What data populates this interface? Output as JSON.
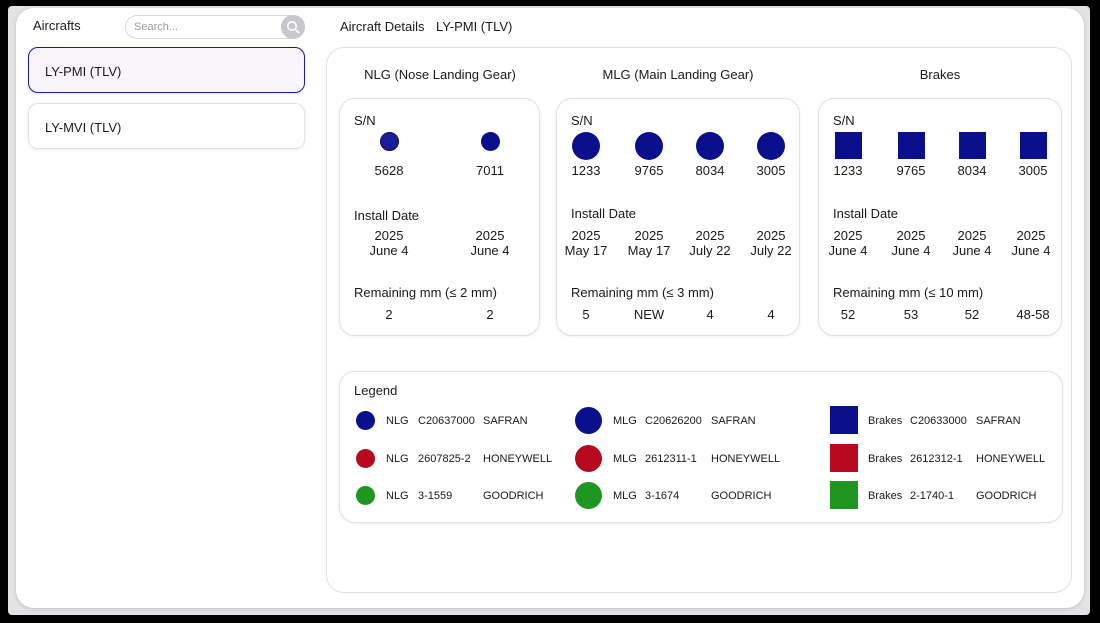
{
  "sidebar": {
    "title": "Aircrafts",
    "search_placeholder": "Search...",
    "items": [
      {
        "label": "LY-PMI (TLV)",
        "selected": true
      },
      {
        "label": "LY-MVI (TLV)",
        "selected": false
      }
    ]
  },
  "details": {
    "label": "Aircraft Details",
    "value": "LY-PMI (TLV)"
  },
  "colors": {
    "safran": "#0a0f8c",
    "honeywell": "#b80a1e",
    "goodrich": "#1e9620",
    "selected_border": "#1a1aa0"
  },
  "groups": {
    "nlg": {
      "title": "NLG (Nose Landing Gear)",
      "sn_label": "S/N",
      "install_label": "Install Date",
      "remaining_label": "Remaining mm (≤ 2 mm)",
      "units": [
        {
          "sn": "5628",
          "year": "2025",
          "date": "June 4",
          "remaining": "2",
          "maker": "safran"
        },
        {
          "sn": "7011",
          "year": "2025",
          "date": "June 4",
          "remaining": "2",
          "maker": "safran"
        }
      ]
    },
    "mlg": {
      "title": "MLG (Main Landing Gear)",
      "sn_label": "S/N",
      "install_label": "Install Date",
      "remaining_label": "Remaining mm (≤ 3 mm)",
      "units": [
        {
          "sn": "1233",
          "year": "2025",
          "date": "May 17",
          "remaining": "5",
          "maker": "safran"
        },
        {
          "sn": "9765",
          "year": "2025",
          "date": "May 17",
          "remaining": "NEW",
          "maker": "safran"
        },
        {
          "sn": "8034",
          "year": "2025",
          "date": "July 22",
          "remaining": "4",
          "maker": "safran"
        },
        {
          "sn": "3005",
          "year": "2025",
          "date": "July 22",
          "remaining": "4",
          "maker": "safran"
        }
      ]
    },
    "brakes": {
      "title": "Brakes",
      "sn_label": "S/N",
      "install_label": "Install Date",
      "remaining_label": "Remaining mm (≤ 10 mm)",
      "units": [
        {
          "sn": "1233",
          "year": "2025",
          "date": "June 4",
          "remaining": "52",
          "maker": "safran"
        },
        {
          "sn": "9765",
          "year": "2025",
          "date": "June 4",
          "remaining": "53",
          "maker": "safran"
        },
        {
          "sn": "8034",
          "year": "2025",
          "date": "June 4",
          "remaining": "52",
          "maker": "safran"
        },
        {
          "sn": "3005",
          "year": "2025",
          "date": "June 4",
          "remaining": "48-58",
          "maker": "safran"
        }
      ]
    }
  },
  "legend": {
    "title": "Legend",
    "nlg": [
      {
        "type": "NLG",
        "part": "C20637000",
        "maker": "SAFRAN"
      },
      {
        "type": "NLG",
        "part": "2607825-2",
        "maker": "HONEYWELL"
      },
      {
        "type": "NLG",
        "part": "3-1559",
        "maker": "GOODRICH"
      }
    ],
    "mlg": [
      {
        "type": "MLG",
        "part": "C20626200",
        "maker": "SAFRAN"
      },
      {
        "type": "MLG",
        "part": "2612311-1",
        "maker": "HONEYWELL"
      },
      {
        "type": "MLG",
        "part": "3-1674",
        "maker": "GOODRICH"
      }
    ],
    "brakes": [
      {
        "type": "Brakes",
        "part": "C20633000",
        "maker": "SAFRAN"
      },
      {
        "type": "Brakes",
        "part": "2612312-1",
        "maker": "HONEYWELL"
      },
      {
        "type": "Brakes",
        "part": "2-1740-1",
        "maker": "GOODRICH"
      }
    ]
  }
}
